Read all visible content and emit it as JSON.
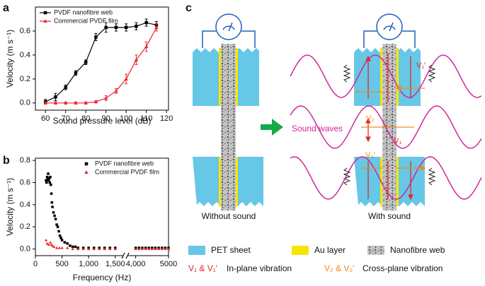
{
  "panel_labels": [
    "a",
    "b",
    "c"
  ],
  "chart_data": [
    {
      "type": "line",
      "x": [
        60,
        65,
        70,
        75,
        80,
        85,
        90,
        95,
        100,
        105,
        110,
        115
      ],
      "series": [
        {
          "name": "PVDF nanofibre web",
          "color": "#000000",
          "marker": "square",
          "values": [
            0.01,
            0.05,
            0.13,
            0.25,
            0.34,
            0.55,
            0.63,
            0.63,
            0.63,
            0.64,
            0.67,
            0.65
          ],
          "errors": [
            0.02,
            0.03,
            0.02,
            0.02,
            0.02,
            0.03,
            0.04,
            0.03,
            0.03,
            0.03,
            0.03,
            0.03
          ]
        },
        {
          "name": "Commercial PVDF film",
          "color": "#e8262b",
          "marker": "triangle",
          "values": [
            0.0,
            0.0,
            0.0,
            0.0,
            0.0,
            0.01,
            0.04,
            0.1,
            0.2,
            0.36,
            0.47,
            0.63
          ],
          "errors": [
            0.01,
            0.01,
            0.01,
            0.01,
            0.01,
            0.01,
            0.02,
            0.02,
            0.04,
            0.04,
            0.04,
            0.03
          ]
        }
      ],
      "x_label": "Sound pressure level (dB)",
      "y_label": "Velocity (m s⁻¹)",
      "xlim": [
        55,
        121
      ],
      "ylim": [
        -0.06,
        0.8
      ],
      "xticks": [
        60,
        70,
        80,
        90,
        100,
        110,
        120
      ],
      "yticks": [
        {
          "value": 0,
          "label": "0.0"
        },
        {
          "value": 0.2,
          "label": "0.2"
        },
        {
          "value": 0.4,
          "label": "0.4"
        },
        {
          "value": 0.6,
          "label": "0.6"
        }
      ],
      "legend": "upper left"
    },
    {
      "type": "scatter",
      "series": [
        {
          "name": "PVDF nanofibre web",
          "color": "#000000",
          "marker": "square",
          "x": [
            200,
            210,
            220,
            230,
            240,
            250,
            260,
            270,
            280,
            290,
            300,
            310,
            320,
            340,
            360,
            380,
            400,
            420,
            440,
            460,
            480,
            500,
            550,
            600,
            650,
            700,
            750,
            800,
            900,
            1000,
            1100,
            1200,
            1300,
            1400,
            1500,
            4000,
            4100,
            4200,
            4300,
            4400,
            4500,
            4600,
            4700,
            4800,
            4900,
            5000
          ],
          "values": [
            0.62,
            0.6,
            0.65,
            0.63,
            0.68,
            0.62,
            0.64,
            0.6,
            0.65,
            0.58,
            0.5,
            0.42,
            0.38,
            0.33,
            0.3,
            0.27,
            0.22,
            0.2,
            0.16,
            0.12,
            0.1,
            0.08,
            0.06,
            0.05,
            0.03,
            0.02,
            0.02,
            0.01,
            0.01,
            0.01,
            0.01,
            0.01,
            0.01,
            0.01,
            0.01,
            0.01,
            0.01,
            0.01,
            0.01,
            0.01,
            0.01,
            0.01,
            0.01,
            0.01,
            0.01,
            0.01
          ]
        },
        {
          "name": "Commercial PVDF film",
          "color": "#e8262b",
          "marker": "triangle",
          "x": [
            200,
            220,
            250,
            280,
            300,
            320,
            350,
            400,
            450,
            500,
            600,
            700,
            800,
            900,
            1000,
            1100,
            1200,
            1300,
            1400,
            1500,
            4000,
            4100,
            4200,
            4300,
            4400,
            4500,
            4600,
            4700,
            4800,
            4900,
            5000
          ],
          "values": [
            0.08,
            0.05,
            0.04,
            0.06,
            0.04,
            0.03,
            0.02,
            0.01,
            0.01,
            0.01,
            0.01,
            0,
            0,
            0,
            0,
            0,
            0,
            0,
            0,
            0,
            0,
            0,
            0,
            0,
            0,
            0,
            0,
            0,
            0,
            0,
            0
          ]
        }
      ],
      "x_label": "Frequency (Hz)",
      "y_label": "Velocity (m s⁻¹)",
      "xlim": [
        0,
        5000
      ],
      "xbreak": [
        1650,
        3750
      ],
      "ylim": [
        -0.06,
        0.82
      ],
      "xticks": [
        0,
        500,
        {
          "value": 1000,
          "label": "1,000"
        },
        {
          "value": 1500,
          "label": "1,500"
        },
        {
          "value": 4000,
          "label": "4,000"
        },
        5000
      ],
      "yticks": [
        {
          "value": 0,
          "label": "0.0"
        },
        {
          "value": 0.2,
          "label": "0.2"
        },
        {
          "value": 0.4,
          "label": "0.4"
        },
        {
          "value": 0.6,
          "label": "0.6"
        },
        {
          "value": 0.8,
          "label": "0.8"
        }
      ],
      "legend": "upper right"
    }
  ],
  "diagram": {
    "left_caption": "Without sound",
    "right_caption": "With sound",
    "wave_label": "Sound waves",
    "arrow_labels": [
      "V₁′",
      "V₂",
      "V₁",
      "V₂′"
    ],
    "legend": [
      {
        "label": "PET sheet"
      },
      {
        "label": "Au layer"
      },
      {
        "label": "Nanofibre web"
      },
      {
        "symbol": "V₁ & V₁′",
        "label": "In-plane vibration"
      },
      {
        "symbol": "V₂ & V₂′",
        "label": "Cross-plane vibration"
      }
    ]
  }
}
